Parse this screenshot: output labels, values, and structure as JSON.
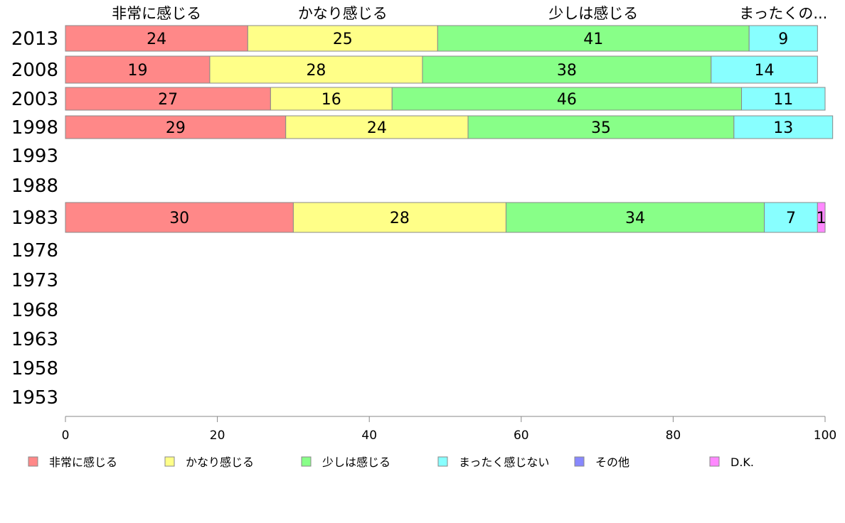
{
  "chart_data": {
    "type": "bar",
    "orientation": "horizontal",
    "stacked": true,
    "categories": [
      "2013",
      "2008",
      "2003",
      "1998",
      "1993",
      "1988",
      "1983",
      "1978",
      "1973",
      "1968",
      "1963",
      "1958",
      "1953"
    ],
    "series": [
      {
        "name": "非常に感じる",
        "color": "#ff8888",
        "values": [
          24,
          19,
          27,
          29,
          null,
          null,
          30,
          null,
          null,
          null,
          null,
          null,
          null
        ]
      },
      {
        "name": "かなり感じる",
        "color": "#ffff88",
        "values": [
          25,
          28,
          16,
          24,
          null,
          null,
          28,
          null,
          null,
          null,
          null,
          null,
          null
        ]
      },
      {
        "name": "少しは感じる",
        "color": "#88ff88",
        "values": [
          41,
          38,
          46,
          35,
          null,
          null,
          34,
          null,
          null,
          null,
          null,
          null,
          null
        ]
      },
      {
        "name": "まったく感じない",
        "color": "#88ffff",
        "values": [
          9,
          14,
          11,
          13,
          null,
          null,
          7,
          null,
          null,
          null,
          null,
          null,
          null
        ]
      },
      {
        "name": "その他",
        "color": "#8888ff",
        "values": [
          null,
          null,
          null,
          null,
          null,
          null,
          null,
          null,
          null,
          null,
          null,
          null,
          null
        ]
      },
      {
        "name": "D.K.",
        "color": "#ff88ff",
        "values": [
          null,
          null,
          null,
          null,
          null,
          null,
          1,
          null,
          null,
          null,
          null,
          null,
          null
        ]
      }
    ],
    "top_labels": [
      "非常に感じる",
      "かなり感じる",
      "少しは感じる",
      "まったくの..."
    ],
    "xlim": [
      0,
      100
    ],
    "xticks": [
      0,
      20,
      40,
      60,
      80,
      100
    ],
    "grid": false,
    "legend_position": "bottom"
  }
}
